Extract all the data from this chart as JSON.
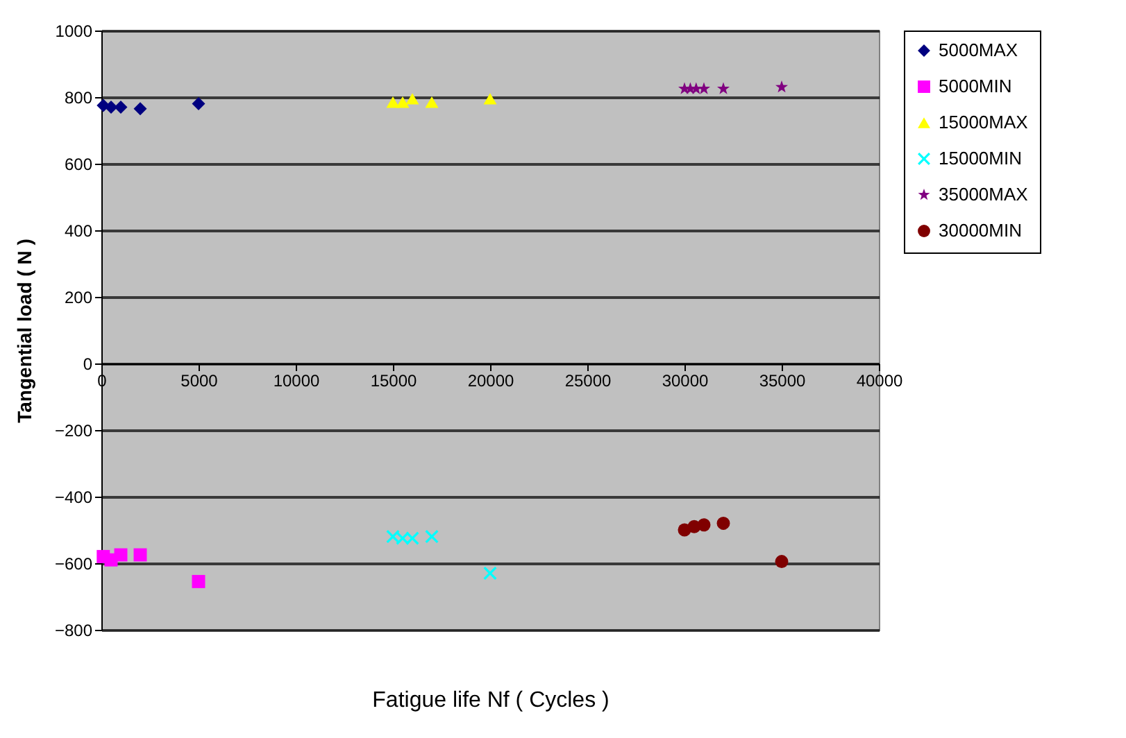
{
  "chart_data": {
    "type": "scatter",
    "xlabel": "Fatigue life Nf  ( Cycles )",
    "ylabel": "Tangential load ( N )",
    "xlim": [
      0,
      40000
    ],
    "xticks": [
      0,
      5000,
      10000,
      15000,
      20000,
      25000,
      30000,
      35000,
      40000
    ],
    "ylim": [
      -800,
      1000
    ],
    "yticks": [
      -800,
      -600,
      -400,
      -200,
      0,
      200,
      400,
      600,
      800,
      1000
    ],
    "grid": "y",
    "legend": "right",
    "series": [
      {
        "name": "5000MAX",
        "color": "#000080",
        "marker": "diamond",
        "x": [
          100,
          500,
          1000,
          2000,
          5000
        ],
        "values": [
          775,
          770,
          770,
          765,
          780
        ]
      },
      {
        "name": "5000MIN",
        "color": "#ff00ff",
        "marker": "square",
        "x": [
          100,
          500,
          1000,
          2000,
          5000
        ],
        "values": [
          -580,
          -590,
          -575,
          -575,
          -655
        ]
      },
      {
        "name": "15000MAX",
        "color": "#ffff00",
        "marker": "triangle",
        "x": [
          15000,
          15500,
          16000,
          17000,
          20000
        ],
        "values": [
          785,
          785,
          795,
          785,
          795
        ]
      },
      {
        "name": "15000MIN",
        "color": "#00ffff",
        "marker": "cross",
        "x": [
          15000,
          15500,
          16000,
          17000,
          20000
        ],
        "values": [
          -520,
          -525,
          -525,
          -520,
          -630
        ]
      },
      {
        "name": "35000MAX",
        "color": "#800080",
        "marker": "star",
        "x": [
          30000,
          30300,
          30600,
          31000,
          32000,
          35000
        ],
        "values": [
          825,
          825,
          825,
          825,
          825,
          830
        ]
      },
      {
        "name": "30000MIN",
        "color": "#800000",
        "marker": "circle",
        "x": [
          30000,
          30500,
          31000,
          32000,
          35000
        ],
        "values": [
          -500,
          -490,
          -485,
          -480,
          -595
        ]
      }
    ]
  }
}
